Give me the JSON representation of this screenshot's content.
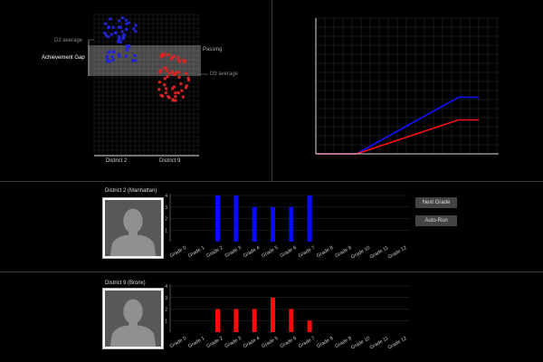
{
  "scatter": {
    "d2_average": "D2 average",
    "achievement_gap": "Achievement Gap",
    "passing": "Passing",
    "d9_average": "D9 average",
    "x_label_d2": "District 2",
    "x_label_d9": "District 9",
    "colors": {
      "d2": "#2222dd",
      "d9": "#dd2222"
    }
  },
  "line_chart": {
    "colors": {
      "d2": "#1010ff",
      "d9": "#ff1010"
    }
  },
  "district2": {
    "title": "District 2 (Manhattan)",
    "color": "#0a0aff"
  },
  "district9": {
    "title": "District 9 (Bronx)",
    "color": "#ff0a0a"
  },
  "buttons": {
    "next_grade": "Next Grade",
    "auto_run": "Auto-Run"
  },
  "chart_data": [
    {
      "type": "line",
      "x": [
        0,
        1,
        2,
        3,
        4,
        5,
        6,
        7,
        8
      ],
      "series": [
        {
          "values": [
            0,
            0,
            0,
            0.25,
            0.5,
            0.75,
            1.0,
            1.25,
            1.25
          ]
        },
        {
          "values": [
            0,
            0,
            0,
            0.15,
            0.3,
            0.45,
            0.6,
            0.75,
            0.75
          ]
        }
      ],
      "grid": true
    },
    {
      "type": "bar",
      "categories": [
        "Grade 0",
        "Grade 1",
        "Grade 2",
        "Grade 3",
        "Grade 4",
        "Grade 5",
        "Grade 6",
        "Grade 7",
        "Grade 8",
        "Grade 9",
        "Grade 10",
        "Grade 11",
        "Grade 12"
      ],
      "values": [
        0,
        0,
        4,
        4,
        3,
        3,
        3,
        4,
        0,
        0,
        0,
        0,
        0
      ],
      "yticks": [
        1,
        2,
        3,
        4
      ],
      "ylim": [
        0,
        4
      ]
    },
    {
      "type": "bar",
      "categories": [
        "Grade 0",
        "Grade 1",
        "Grade 2",
        "Grade 3",
        "Grade 4",
        "Grade 5",
        "Grade 6",
        "Grade 7",
        "Grade 8",
        "Grade 9",
        "Grade 10",
        "Grade 11",
        "Grade 12"
      ],
      "values": [
        0,
        0,
        2,
        2,
        2,
        3,
        2,
        1,
        0,
        0,
        0,
        0,
        0
      ],
      "yticks": [
        1,
        2,
        3,
        4
      ],
      "ylim": [
        0,
        4
      ]
    }
  ]
}
